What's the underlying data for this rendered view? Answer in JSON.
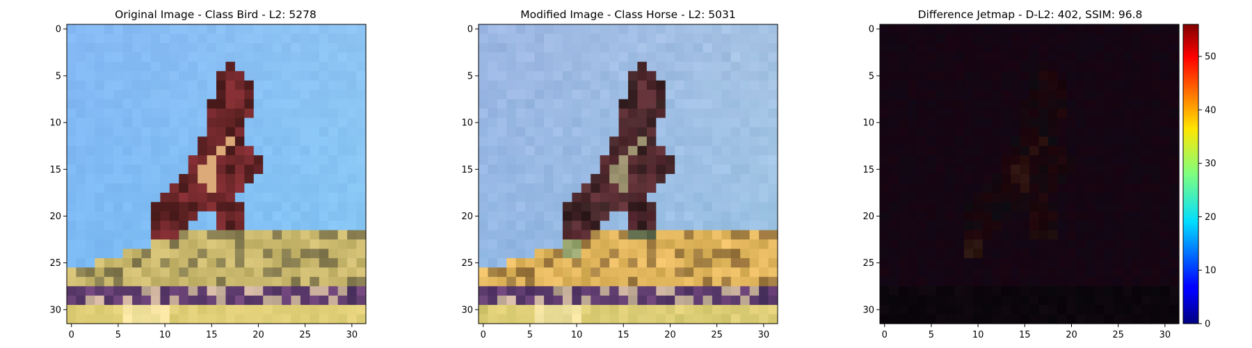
{
  "figure": {
    "panels": [
      {
        "title": "Original Image - Class Bird - L2: 5278",
        "title_color": "#000000",
        "x_ticks": [
          "0",
          "5",
          "10",
          "15",
          "20",
          "25",
          "30"
        ],
        "y_ticks": [
          "0",
          "5",
          "10",
          "15",
          "20",
          "25",
          "30"
        ]
      },
      {
        "title": "Modified Image - Class Horse - L2: 5031",
        "title_color": "#ff0000",
        "x_ticks": [
          "0",
          "5",
          "10",
          "15",
          "20",
          "25",
          "30"
        ],
        "y_ticks": [
          "0",
          "5",
          "10",
          "15",
          "20",
          "25",
          "30"
        ]
      },
      {
        "title": "Difference Jetmap - D-L2: 402, SSIM: 96.8",
        "title_color": "#000000",
        "x_ticks": [
          "0",
          "5",
          "10",
          "15",
          "20",
          "25",
          "30"
        ],
        "y_ticks": [
          "0",
          "5",
          "10",
          "15",
          "20",
          "25",
          "30"
        ]
      }
    ],
    "colorbar": {
      "ticks": [
        "0",
        "10",
        "20",
        "30",
        "40",
        "50"
      ],
      "min": 0,
      "max": 56
    }
  }
}
